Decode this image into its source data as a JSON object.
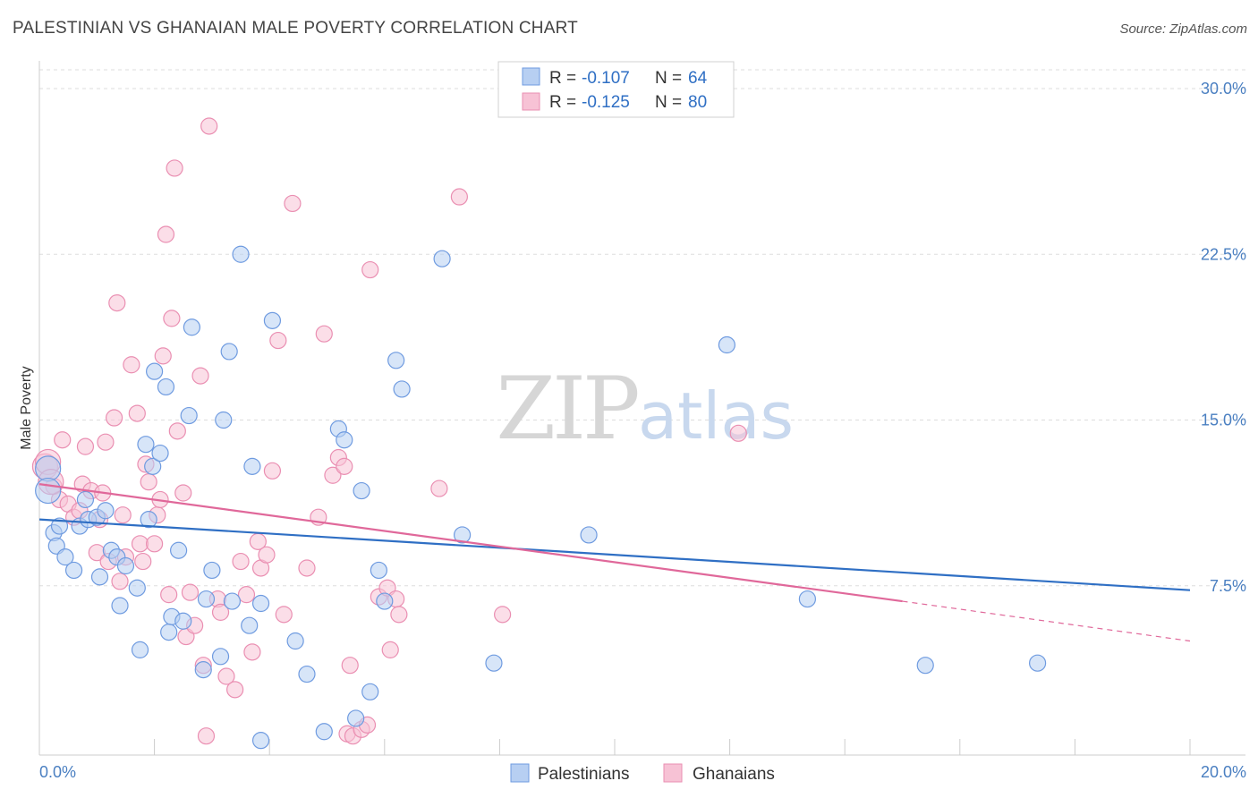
{
  "title": "PALESTINIAN VS GHANAIAN MALE POVERTY CORRELATION CHART",
  "source": "Source: ZipAtlas.com",
  "watermark": {
    "zip": "ZIP",
    "atlas": "atlas"
  },
  "colors": {
    "blue": "#2f6fc4",
    "blue_fill": "#b7cff2",
    "blue_stroke": "#6f9be0",
    "pink": "#e0689a",
    "pink_fill": "#f7c2d5",
    "pink_stroke": "#ea8fb2",
    "tick": "#4a7fc1",
    "grid": "#dddddd"
  },
  "legend": {
    "r_label": "R =",
    "n_label": "N =",
    "rows": [
      {
        "r": "-0.107",
        "n": "64"
      },
      {
        "r": "-0.125",
        "n": "80"
      }
    ]
  },
  "chart_data": {
    "type": "scatter",
    "title": "PALESTINIAN VS GHANAIAN MALE POVERTY CORRELATION CHART",
    "xlabel": "",
    "ylabel": "Male Poverty",
    "xlim": [
      0,
      20
    ],
    "ylim": [
      0,
      31
    ],
    "x_tick_labels": [
      "0.0%",
      "20.0%"
    ],
    "y_ticks": [
      7.5,
      15.0,
      22.5,
      30.0
    ],
    "y_tick_labels": [
      "7.5%",
      "15.0%",
      "22.5%",
      "30.0%"
    ],
    "grid": true,
    "legend_position": "top-center",
    "series": [
      {
        "name": "Palestinians",
        "trend": {
          "x": [
            0,
            20
          ],
          "y": [
            10.5,
            7.3
          ]
        },
        "points": [
          [
            0.15,
            12.8
          ],
          [
            0.15,
            11.8
          ],
          [
            0.25,
            9.9
          ],
          [
            0.3,
            9.3
          ],
          [
            0.35,
            10.2
          ],
          [
            0.45,
            8.8
          ],
          [
            0.6,
            8.2
          ],
          [
            0.7,
            10.2
          ],
          [
            0.8,
            11.4
          ],
          [
            0.85,
            10.5
          ],
          [
            1.0,
            10.6
          ],
          [
            1.05,
            7.9
          ],
          [
            1.15,
            10.9
          ],
          [
            1.25,
            9.1
          ],
          [
            1.35,
            8.8
          ],
          [
            1.4,
            6.6
          ],
          [
            1.5,
            8.4
          ],
          [
            1.7,
            7.4
          ],
          [
            1.75,
            4.6
          ],
          [
            1.85,
            13.9
          ],
          [
            1.9,
            10.5
          ],
          [
            1.97,
            12.9
          ],
          [
            2.0,
            17.2
          ],
          [
            2.1,
            13.5
          ],
          [
            2.2,
            16.5
          ],
          [
            2.25,
            5.4
          ],
          [
            2.3,
            6.1
          ],
          [
            2.42,
            9.1
          ],
          [
            2.5,
            5.9
          ],
          [
            2.6,
            15.2
          ],
          [
            2.65,
            19.2
          ],
          [
            2.85,
            3.7
          ],
          [
            2.9,
            6.9
          ],
          [
            3.0,
            8.2
          ],
          [
            3.15,
            4.3
          ],
          [
            3.2,
            15.0
          ],
          [
            3.3,
            18.1
          ],
          [
            3.35,
            6.8
          ],
          [
            3.5,
            22.5
          ],
          [
            3.65,
            5.7
          ],
          [
            3.7,
            12.9
          ],
          [
            3.85,
            0.5
          ],
          [
            3.85,
            6.7
          ],
          [
            4.05,
            19.5
          ],
          [
            4.45,
            5.0
          ],
          [
            4.65,
            3.5
          ],
          [
            4.95,
            0.9
          ],
          [
            5.2,
            14.6
          ],
          [
            5.3,
            14.1
          ],
          [
            5.5,
            1.5
          ],
          [
            5.6,
            11.8
          ],
          [
            5.75,
            2.7
          ],
          [
            5.9,
            8.2
          ],
          [
            6.0,
            6.8
          ],
          [
            6.2,
            17.7
          ],
          [
            6.3,
            16.4
          ],
          [
            7.0,
            22.3
          ],
          [
            7.35,
            9.8
          ],
          [
            7.9,
            4.0
          ],
          [
            9.55,
            9.8
          ],
          [
            11.95,
            18.4
          ],
          [
            13.35,
            6.9
          ],
          [
            15.4,
            3.9
          ],
          [
            17.35,
            4.0
          ]
        ]
      },
      {
        "name": "Ghanaians",
        "trend": {
          "x": [
            0,
            15.0
          ],
          "y": [
            12.1,
            6.8
          ]
        },
        "trend_extension": {
          "x": [
            15.0,
            20
          ],
          "y": [
            6.8,
            5.0
          ]
        },
        "points": [
          [
            0.1,
            12.9
          ],
          [
            0.15,
            13.1
          ],
          [
            0.25,
            12.0
          ],
          [
            0.35,
            11.4
          ],
          [
            0.4,
            14.1
          ],
          [
            0.5,
            11.2
          ],
          [
            0.6,
            10.6
          ],
          [
            0.7,
            10.9
          ],
          [
            0.75,
            12.1
          ],
          [
            0.8,
            13.8
          ],
          [
            0.9,
            11.8
          ],
          [
            1.0,
            9.0
          ],
          [
            1.05,
            10.5
          ],
          [
            1.1,
            11.7
          ],
          [
            1.15,
            14.0
          ],
          [
            1.2,
            8.6
          ],
          [
            1.3,
            15.1
          ],
          [
            1.35,
            20.3
          ],
          [
            1.4,
            7.7
          ],
          [
            1.45,
            10.7
          ],
          [
            1.5,
            8.8
          ],
          [
            1.6,
            17.5
          ],
          [
            1.7,
            15.3
          ],
          [
            1.75,
            9.4
          ],
          [
            1.8,
            8.6
          ],
          [
            1.85,
            13.0
          ],
          [
            1.9,
            12.2
          ],
          [
            2.0,
            9.4
          ],
          [
            2.05,
            10.7
          ],
          [
            2.1,
            11.4
          ],
          [
            2.15,
            17.9
          ],
          [
            2.2,
            23.4
          ],
          [
            2.25,
            7.1
          ],
          [
            2.3,
            19.6
          ],
          [
            2.35,
            26.4
          ],
          [
            2.4,
            14.5
          ],
          [
            2.5,
            11.7
          ],
          [
            2.55,
            5.2
          ],
          [
            2.62,
            7.2
          ],
          [
            2.7,
            5.7
          ],
          [
            2.8,
            17.0
          ],
          [
            2.85,
            3.9
          ],
          [
            2.9,
            0.7
          ],
          [
            2.95,
            28.3
          ],
          [
            3.1,
            6.9
          ],
          [
            3.15,
            6.3
          ],
          [
            3.25,
            3.4
          ],
          [
            3.4,
            2.8
          ],
          [
            3.5,
            8.6
          ],
          [
            3.6,
            7.1
          ],
          [
            3.7,
            4.5
          ],
          [
            3.8,
            9.5
          ],
          [
            3.85,
            8.3
          ],
          [
            3.95,
            8.9
          ],
          [
            4.05,
            12.7
          ],
          [
            4.15,
            18.6
          ],
          [
            4.25,
            6.2
          ],
          [
            4.4,
            24.8
          ],
          [
            4.65,
            8.3
          ],
          [
            4.85,
            10.6
          ],
          [
            4.95,
            18.9
          ],
          [
            5.1,
            12.5
          ],
          [
            5.2,
            13.3
          ],
          [
            5.3,
            12.9
          ],
          [
            5.35,
            0.8
          ],
          [
            5.4,
            3.9
          ],
          [
            5.45,
            0.7
          ],
          [
            5.6,
            1.0
          ],
          [
            5.7,
            1.2
          ],
          [
            5.75,
            21.8
          ],
          [
            5.9,
            7.0
          ],
          [
            6.05,
            7.4
          ],
          [
            6.1,
            4.6
          ],
          [
            6.2,
            6.9
          ],
          [
            6.25,
            6.2
          ],
          [
            6.95,
            11.9
          ],
          [
            7.3,
            25.1
          ],
          [
            8.05,
            6.2
          ],
          [
            12.15,
            14.4
          ],
          [
            0.2,
            12.2
          ]
        ]
      }
    ]
  },
  "series_legend": [
    {
      "name": "Palestinians"
    },
    {
      "name": "Ghanaians"
    }
  ]
}
